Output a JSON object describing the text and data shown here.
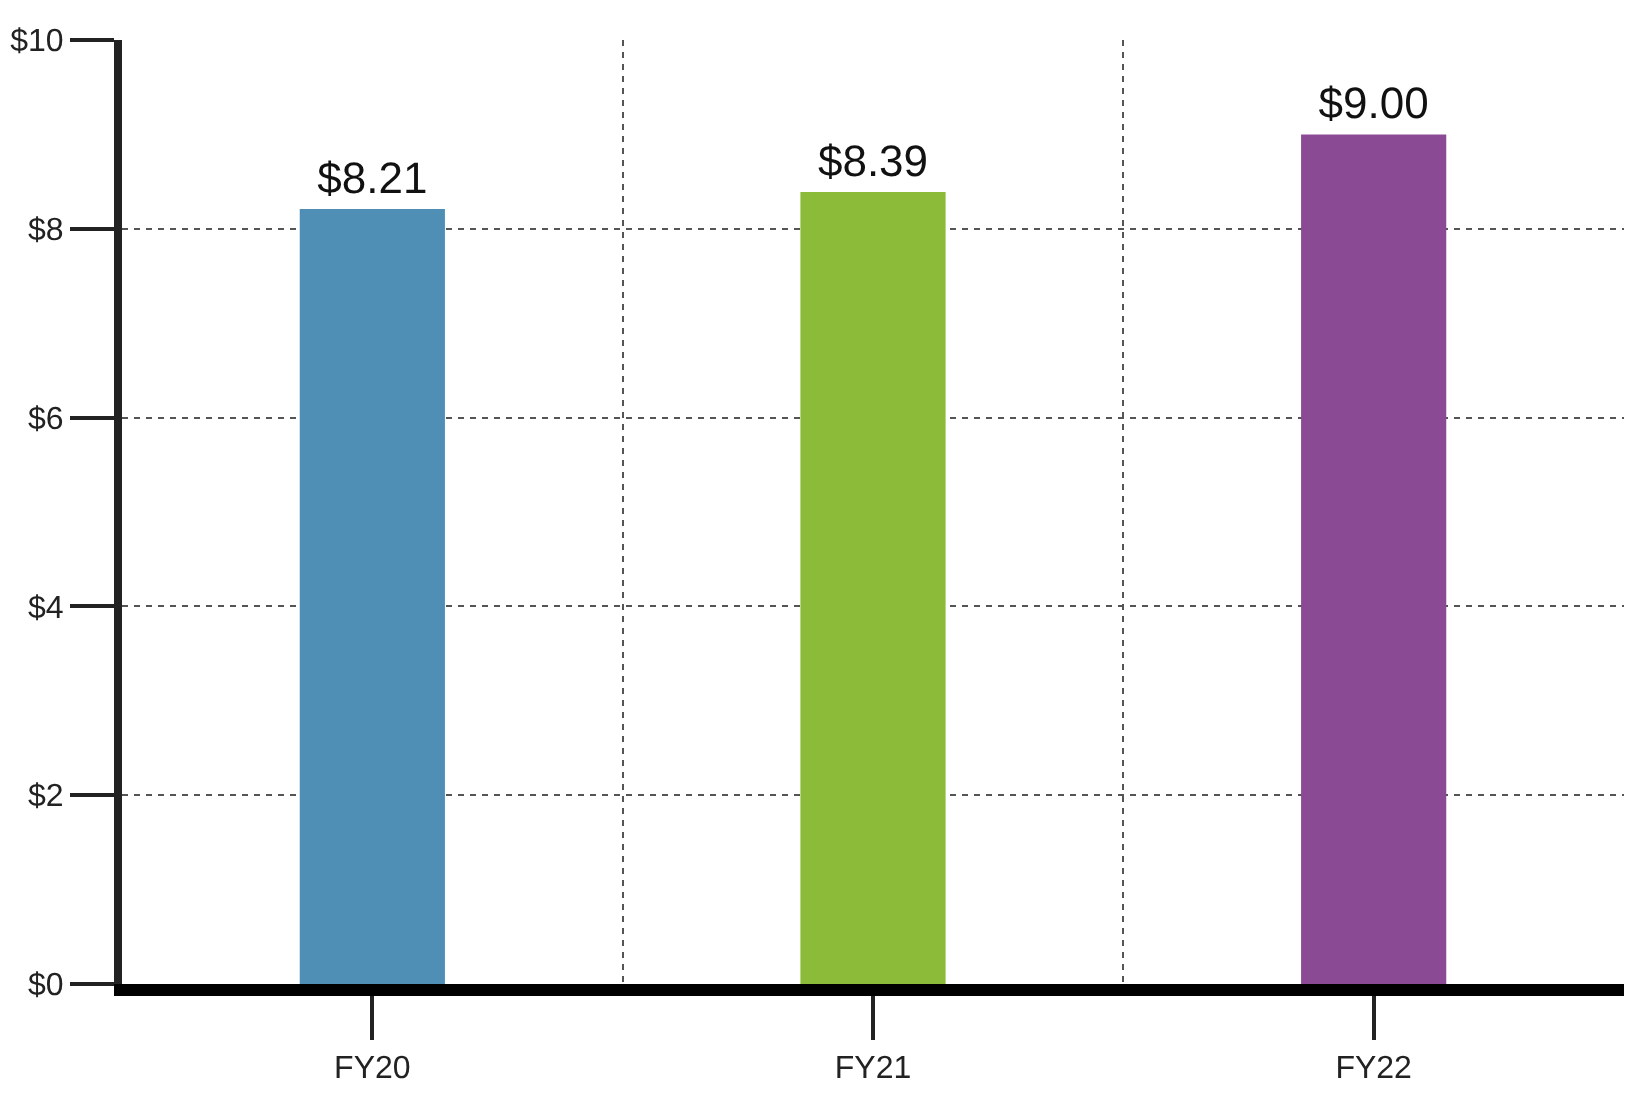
{
  "chart_data": {
    "type": "bar",
    "categories": [
      "FY20",
      "FY21",
      "FY22"
    ],
    "values": [
      8.21,
      8.39,
      9.0
    ],
    "colors": [
      "#4f8fb5",
      "#8cbb3a",
      "#8a4a94"
    ],
    "value_labels": [
      "$8.21",
      "$8.39",
      "$9.00"
    ],
    "ylim": [
      0,
      10
    ],
    "yticks": [
      {
        "value": 0,
        "label": "$0"
      },
      {
        "value": 2,
        "label": "$2"
      },
      {
        "value": 4,
        "label": "$4"
      },
      {
        "value": 6,
        "label": "$6"
      },
      {
        "value": 8,
        "label": "$8"
      },
      {
        "value": 10,
        "label": "$10"
      }
    ],
    "grid": true
  }
}
